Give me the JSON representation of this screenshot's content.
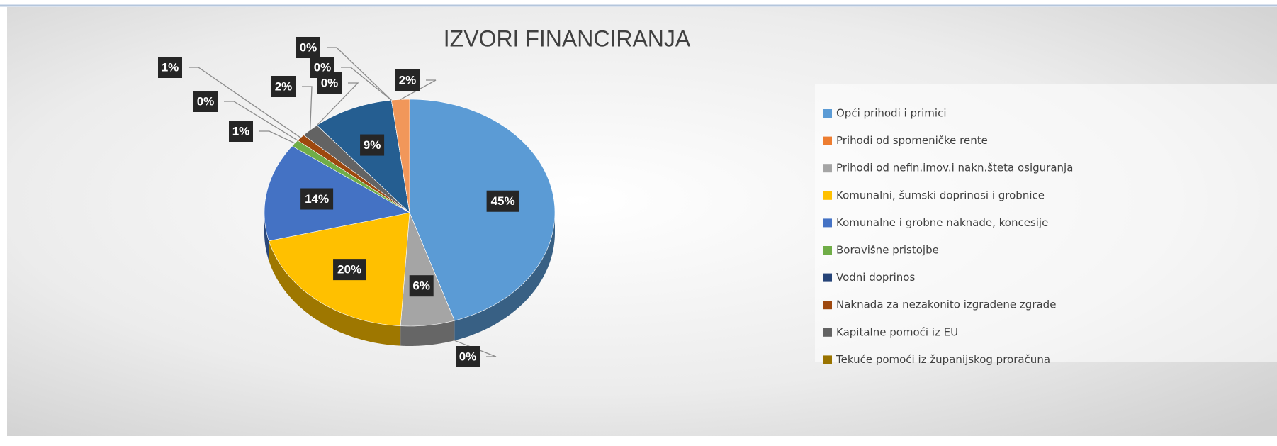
{
  "chart_data": {
    "type": "pie3d",
    "title": "IZVORI FINANCIRANJA",
    "categories": [
      "Opći prihodi i primici",
      "Prihodi od spomeničke rente",
      "Prihodi od nefin.imov.i nakn.šteta osiguranja",
      "Komunalni, šumski doprinosi i grobnice",
      "Komunalne i grobne naknade, koncesije",
      "Boravišne pristojbe",
      "Vodni doprinos",
      "Naknada za nezakonito izgrađene zgrade",
      "Kapitalne pomoći iz EU",
      "Tekuće pomoći iz županijskog proračuna",
      null,
      null,
      null,
      null
    ],
    "values": [
      45,
      0,
      6,
      20,
      14,
      1,
      0,
      1,
      2,
      0,
      9,
      0,
      0,
      2
    ],
    "value_labels": [
      "45%",
      "0%",
      "6%",
      "20%",
      "14%",
      "1%",
      "0%",
      "1%",
      "2%",
      "0%",
      "9%",
      "0%",
      "0%",
      "2%"
    ],
    "colors": [
      "#5b9bd5",
      "#ed7d31",
      "#a5a5a5",
      "#ffc000",
      "#4472c4",
      "#70ad47",
      "#264478",
      "#9e480e",
      "#636363",
      "#997300",
      "#255e91",
      "#43682b",
      "#698ed0",
      "#f1975a"
    ],
    "legend": "right"
  }
}
